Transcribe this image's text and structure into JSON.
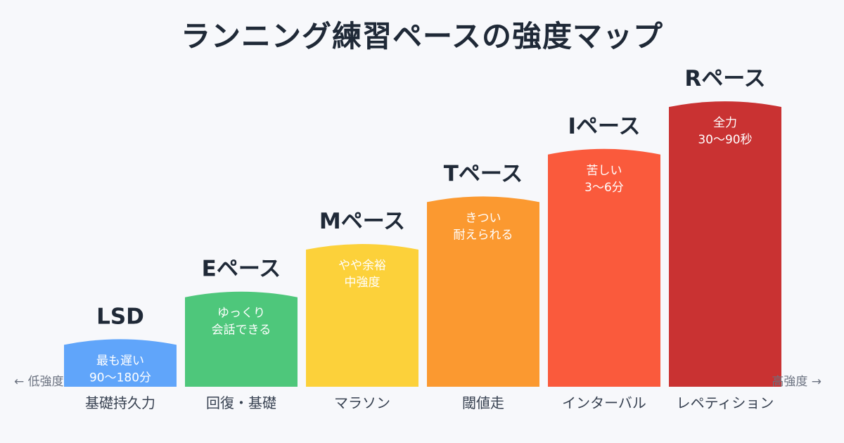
{
  "title": "ランニング練習ペースの強度マップ",
  "axis": {
    "left_label": "← 低強度",
    "right_label": "高強度 →"
  },
  "chart_data": {
    "type": "bar",
    "title": "ランニング練習ペースの強度マップ",
    "categories": [
      "基礎持久力",
      "回復・基礎",
      "マラソン",
      "閾値走",
      "インターバル",
      "レペティション"
    ],
    "bar_labels": [
      "LSD",
      "Eペース",
      "Mペース",
      "Tペース",
      "Iペース",
      "Rペース"
    ],
    "annotations": [
      [
        "最も遅い",
        "90〜180分"
      ],
      [
        "ゆっくり",
        "会話できる"
      ],
      [
        "やや余裕",
        "中強度"
      ],
      [
        "きつい",
        "耐えられる"
      ],
      [
        "苦しい",
        "3〜6分"
      ],
      [
        "全力",
        "30〜90秒"
      ]
    ],
    "values": [
      1,
      2,
      3,
      4,
      5,
      6
    ],
    "ylim": [
      0,
      6.8
    ],
    "colors": [
      "#60a5fa",
      "#4ec77b",
      "#fcd13a",
      "#fb9930",
      "#fa5a3c",
      "#c93232"
    ],
    "grid": false
  }
}
